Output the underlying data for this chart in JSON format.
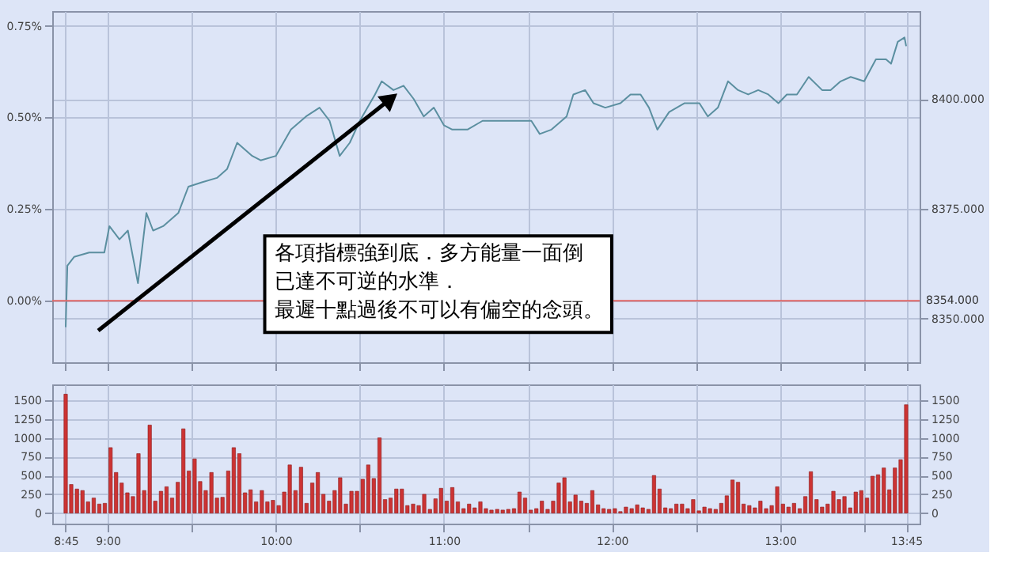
{
  "chart_data": [
    {
      "type": "line",
      "tick_labels": "y",
      "grid": true,
      "annotations": [
        "各項指標強到底．多方能量一面倒",
        "已達不可逆的水準．",
        "最遲十點過後不可以有偏空的念頭。"
      ],
      "x": [
        8.75,
        8.76,
        8.8,
        8.89,
        8.98,
        9.01,
        9.07,
        9.12,
        9.18,
        9.23,
        9.27,
        9.33,
        9.42,
        9.48,
        9.56,
        9.65,
        9.71,
        9.77,
        9.86,
        9.91,
        10.0,
        10.09,
        10.18,
        10.26,
        10.32,
        10.38,
        10.44,
        10.5,
        10.59,
        10.63,
        10.7,
        10.76,
        10.82,
        10.88,
        10.94,
        11.0,
        11.05,
        11.14,
        11.23,
        11.26,
        11.43,
        11.52,
        11.57,
        11.64,
        11.73,
        11.77,
        11.84,
        11.89,
        11.96,
        12.05,
        12.11,
        12.17,
        12.22,
        12.27,
        12.34,
        12.43,
        12.52,
        12.57,
        12.63,
        12.69,
        12.75,
        12.81,
        12.87,
        12.93,
        12.99,
        13.04,
        13.1,
        13.17,
        13.25,
        13.3,
        13.36,
        13.42,
        13.5,
        13.57,
        13.63,
        13.66,
        13.7,
        13.74,
        13.75
      ],
      "series": [
        {
          "color": "#5b8fa0",
          "values": [
            8348,
            8362,
            8364,
            8365,
            8365,
            8371,
            8368,
            8370,
            8358,
            8374,
            8370,
            8371,
            8374,
            8380,
            8381,
            8382,
            8384,
            8390,
            8387,
            8386,
            8387,
            8393,
            8396,
            8398,
            8395,
            8387,
            8390,
            8395,
            8401,
            8404,
            8402,
            8403,
            8400,
            8396,
            8398,
            8394,
            8393,
            8393,
            8395,
            8395,
            8395,
            8395,
            8392,
            8393,
            8396,
            8401,
            8402,
            8399,
            8398,
            8399,
            8401,
            8401,
            8398,
            8393,
            8397,
            8399,
            8399,
            8396,
            8398,
            8404,
            8402,
            8401,
            8402,
            8401,
            8399,
            8401,
            8401,
            8405,
            8402,
            8402,
            8404,
            8405,
            8404,
            8409,
            8409,
            8408,
            8413,
            8414,
            8412
          ]
        }
      ],
      "xlim": [
        8.67,
        13.83
      ],
      "xticks": [
        {
          "value": 8.75,
          "label": null
        },
        {
          "value": 9,
          "label": null
        },
        {
          "value": 9.5,
          "label": null
        },
        {
          "value": 10,
          "label": null
        },
        {
          "value": 10.5,
          "label": null
        },
        {
          "value": 11,
          "label": null
        },
        {
          "value": 11.5,
          "label": null
        },
        {
          "value": 12,
          "label": null
        },
        {
          "value": 12.5,
          "label": null
        },
        {
          "value": 13,
          "label": null
        },
        {
          "value": 13.5,
          "label": null
        },
        {
          "value": 13.75,
          "label": null
        }
      ],
      "ylim": [
        8340,
        8420
      ],
      "yticks": [
        {
          "value": 8350,
          "label": "8350.000"
        },
        {
          "value": 8375,
          "label": "8375.000"
        },
        {
          "value": 8400,
          "label": "8400.000"
        }
      ],
      "y2lim": [
        -0.168,
        0.79
      ],
      "y2ticks": [
        {
          "value": 0,
          "label": "0.00%"
        },
        {
          "value": 0.25,
          "label": "0.25%"
        },
        {
          "value": 0.5,
          "label": "0.50%"
        },
        {
          "value": 0.75,
          "label": "0.75%"
        }
      ],
      "ref_lines": [
        {
          "axis": "y",
          "value": 8354,
          "label": "8354.000",
          "color": "#e06666"
        }
      ]
    },
    {
      "type": "bar",
      "grid": true,
      "color": "#cc3333",
      "x": [
        8.75,
        8.783,
        8.817,
        8.85,
        8.883,
        8.917,
        8.95,
        8.983,
        9.017,
        9.05,
        9.083,
        9.117,
        9.15,
        9.183,
        9.217,
        9.25,
        9.283,
        9.317,
        9.35,
        9.383,
        9.417,
        9.45,
        9.483,
        9.517,
        9.55,
        9.583,
        9.617,
        9.65,
        9.683,
        9.717,
        9.75,
        9.783,
        9.817,
        9.85,
        9.883,
        9.917,
        9.95,
        9.983,
        10.017,
        10.05,
        10.083,
        10.117,
        10.15,
        10.183,
        10.217,
        10.25,
        10.283,
        10.317,
        10.35,
        10.383,
        10.417,
        10.45,
        10.483,
        10.517,
        10.55,
        10.583,
        10.617,
        10.65,
        10.683,
        10.717,
        10.75,
        10.783,
        10.817,
        10.85,
        10.883,
        10.917,
        10.95,
        10.983,
        11.017,
        11.05,
        11.083,
        11.117,
        11.15,
        11.183,
        11.217,
        11.25,
        11.283,
        11.317,
        11.35,
        11.383,
        11.417,
        11.45,
        11.483,
        11.517,
        11.55,
        11.583,
        11.617,
        11.65,
        11.683,
        11.717,
        11.75,
        11.783,
        11.817,
        11.85,
        11.883,
        11.917,
        11.95,
        11.983,
        12.017,
        12.05,
        12.083,
        12.117,
        12.15,
        12.183,
        12.217,
        12.25,
        12.283,
        12.317,
        12.35,
        12.383,
        12.417,
        12.45,
        12.483,
        12.517,
        12.55,
        12.583,
        12.617,
        12.65,
        12.683,
        12.717,
        12.75,
        12.783,
        12.817,
        12.85,
        12.883,
        12.917,
        12.95,
        12.983,
        13.017,
        13.05,
        13.083,
        13.117,
        13.15,
        13.183,
        13.217,
        13.25,
        13.283,
        13.317,
        13.35,
        13.383,
        13.417,
        13.45,
        13.483,
        13.517,
        13.55,
        13.583,
        13.617,
        13.65,
        13.683,
        13.717,
        13.75
      ],
      "values": [
        1580,
        380,
        320,
        300,
        150,
        200,
        120,
        130,
        870,
        540,
        400,
        270,
        220,
        790,
        300,
        1170,
        160,
        290,
        350,
        200,
        410,
        1120,
        560,
        720,
        420,
        300,
        540,
        200,
        210,
        560,
        870,
        790,
        270,
        310,
        150,
        300,
        150,
        170,
        100,
        280,
        640,
        300,
        610,
        130,
        400,
        540,
        250,
        160,
        300,
        470,
        120,
        290,
        290,
        450,
        640,
        460,
        1000,
        180,
        200,
        320,
        320,
        100,
        120,
        100,
        250,
        50,
        190,
        330,
        160,
        340,
        150,
        60,
        120,
        70,
        150,
        60,
        40,
        50,
        40,
        50,
        60,
        280,
        200,
        40,
        60,
        160,
        50,
        160,
        400,
        470,
        150,
        240,
        160,
        130,
        300,
        110,
        60,
        50,
        60,
        20,
        80,
        60,
        110,
        70,
        50,
        500,
        320,
        70,
        60,
        120,
        120,
        60,
        180,
        30,
        80,
        60,
        50,
        130,
        230,
        440,
        410,
        120,
        100,
        70,
        160,
        60,
        100,
        350,
        120,
        80,
        130,
        60,
        220,
        550,
        180,
        80,
        120,
        290,
        180,
        220,
        70,
        280,
        300,
        200,
        490,
        510,
        600,
        310,
        600,
        710,
        1440
      ],
      "xlim": [
        8.67,
        13.83
      ],
      "xticks": [
        {
          "value": 8.75,
          "label": "8:45"
        },
        {
          "value": 9,
          "label": "9:00"
        },
        {
          "value": 9.5,
          "label": null
        },
        {
          "value": 10,
          "label": "10:00"
        },
        {
          "value": 10.5,
          "label": null
        },
        {
          "value": 11,
          "label": "11:00"
        },
        {
          "value": 11.5,
          "label": null
        },
        {
          "value": 12,
          "label": "12:00"
        },
        {
          "value": 12.5,
          "label": null
        },
        {
          "value": 13,
          "label": "13:00"
        },
        {
          "value": 13.5,
          "label": null
        },
        {
          "value": 13.75,
          "label": "13:45"
        }
      ],
      "ylim": [
        -140,
        1710
      ],
      "yticks": [
        0,
        250,
        500,
        750,
        1000,
        1250,
        1500
      ],
      "y2lim": [
        -140,
        1710
      ],
      "y2ticks": [
        0,
        250,
        500,
        750,
        1000,
        1250,
        1500
      ]
    }
  ]
}
